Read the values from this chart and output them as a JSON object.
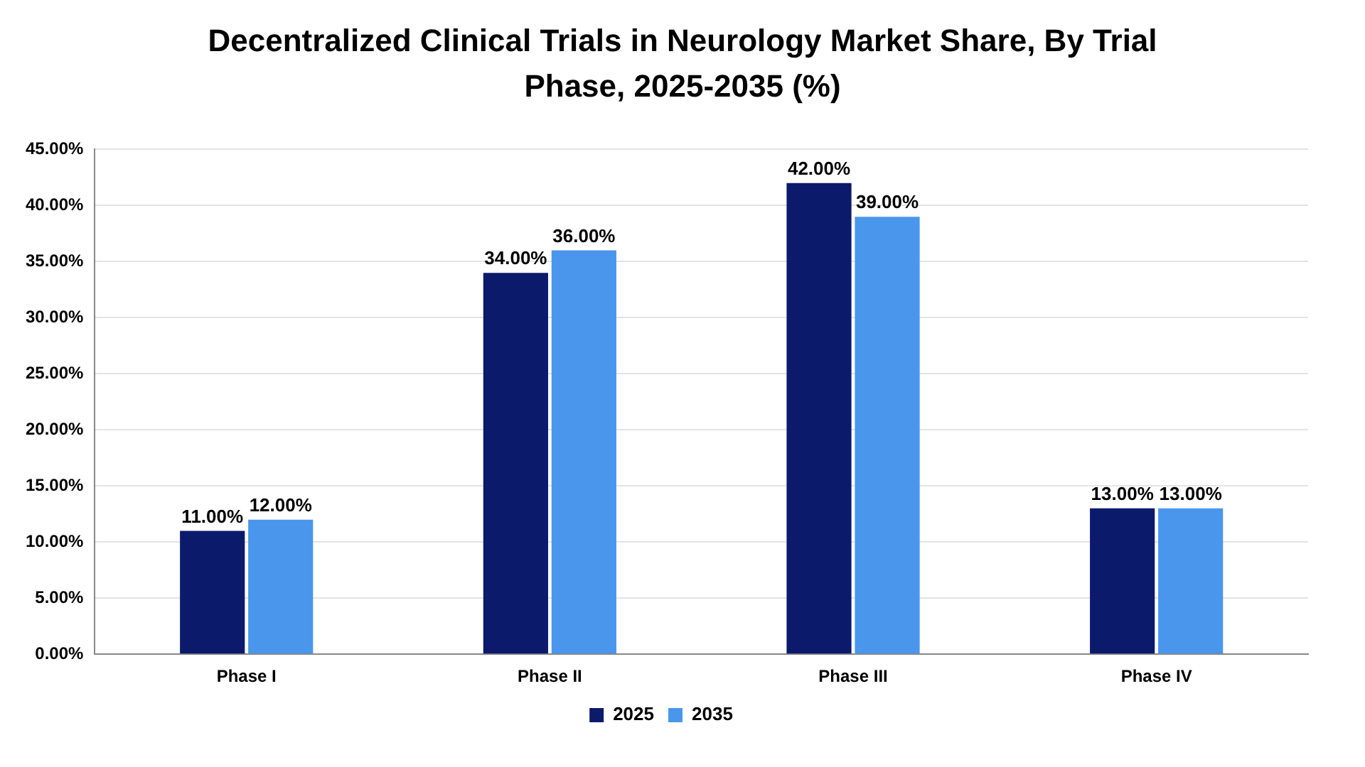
{
  "chart_data": {
    "type": "bar",
    "title": "Decentralized Clinical Trials in Neurology Market Share, By Trial Phase, 2025-2035 (%)",
    "categories": [
      "Phase I",
      "Phase II",
      "Phase III",
      "Phase IV"
    ],
    "series": [
      {
        "name": "2025",
        "color": "#0b1a6b",
        "values": [
          11,
          34,
          42,
          13
        ],
        "value_labels": [
          "11.00%",
          "34.00%",
          "42.00%",
          "13.00%"
        ]
      },
      {
        "name": "2035",
        "color": "#4a96ec",
        "values": [
          12,
          36,
          39,
          13
        ],
        "value_labels": [
          "12.00%",
          "36.00%",
          "39.00%",
          "13.00%"
        ]
      }
    ],
    "ylim": [
      0,
      45
    ],
    "yticks": [
      {
        "value": 0,
        "label": "0.00%"
      },
      {
        "value": 5,
        "label": "5.00%"
      },
      {
        "value": 10,
        "label": "10.00%"
      },
      {
        "value": 15,
        "label": "15.00%"
      },
      {
        "value": 20,
        "label": "20.00%"
      },
      {
        "value": 25,
        "label": "25.00%"
      },
      {
        "value": 30,
        "label": "30.00%"
      },
      {
        "value": 35,
        "label": "35.00%"
      },
      {
        "value": 40,
        "label": "40.00%"
      },
      {
        "value": 45,
        "label": "45.00%"
      }
    ],
    "grid": "y",
    "legend": "bottom"
  }
}
